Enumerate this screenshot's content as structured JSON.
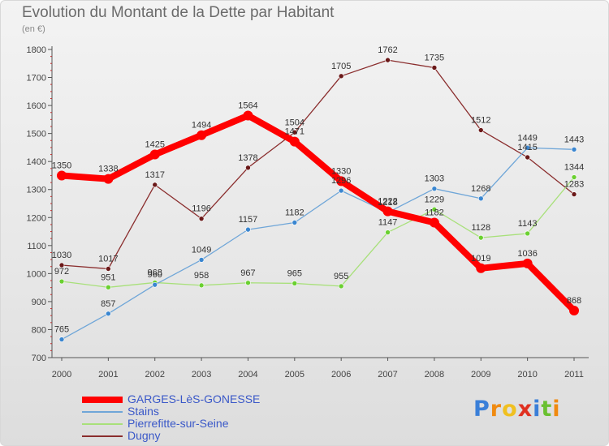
{
  "chart_data": {
    "type": "line",
    "title": "Evolution du Montant de la Dette par Habitant",
    "subtitle": "(en €)",
    "x": [
      "2000",
      "2001",
      "2002",
      "2003",
      "2004",
      "2005",
      "2006",
      "2007",
      "2008",
      "2009",
      "2010",
      "2011"
    ],
    "ylim": [
      700,
      1800
    ],
    "yticks": [
      700,
      800,
      900,
      1000,
      1100,
      1200,
      1300,
      1400,
      1500,
      1600,
      1700,
      1800
    ],
    "grid": false,
    "legend_placement": "bottom-left",
    "series": [
      {
        "name": "GARGES-LèS-GONESSE",
        "color": "#ff0000",
        "marker_color": "#ff0000",
        "values": [
          1350,
          1338,
          1425,
          1494,
          1564,
          1471,
          1330,
          1222,
          1182,
          1019,
          1036,
          868
        ],
        "labels": [
          "1350",
          "1338",
          "1425",
          "1494",
          "1564",
          "1471",
          "1330",
          "1222",
          "1182",
          "1019",
          "1036",
          "868"
        ]
      },
      {
        "name": "Stains",
        "color": "#6fa6d8",
        "marker_color": "#3a86d0",
        "values": [
          765,
          857,
          960,
          1049,
          1157,
          1182,
          1296,
          1218,
          1303,
          1268,
          1449,
          1443
        ],
        "labels": [
          "765",
          "857",
          "960",
          "1049",
          "1157",
          "1182",
          "1296",
          "1218",
          "1303",
          "1268",
          "1449",
          "1443"
        ]
      },
      {
        "name": "Pierrefitte-sur-Seine",
        "color": "#a8e07a",
        "marker_color": "#6ad030",
        "values": [
          972,
          951,
          968,
          958,
          967,
          965,
          955,
          1147,
          1229,
          1128,
          1143,
          1344
        ],
        "labels": [
          "972",
          "951",
          "968",
          "958",
          "967",
          "965",
          "955",
          "1147",
          "1229",
          "1128",
          "1143",
          "1344"
        ]
      },
      {
        "name": "Dugny",
        "color": "#8a2d2d",
        "marker_color": "#6a1818",
        "values": [
          1030,
          1017,
          1317,
          1196,
          1378,
          1504,
          1705,
          1762,
          1735,
          1512,
          1415,
          1283
        ],
        "labels": [
          "1030",
          "1017",
          "1317",
          "1196",
          "1378",
          "1504",
          "1705",
          "1762",
          "1735",
          "1512",
          "1415",
          "1283"
        ]
      }
    ]
  },
  "logo": {
    "letters": [
      "P",
      "r",
      "o",
      "x",
      "i",
      "t",
      "i"
    ],
    "colors": [
      "#3a7fd8",
      "#f08a10",
      "#f0c020",
      "#e03020",
      "#3a7fd8",
      "#6ac030",
      "#f08a10"
    ]
  }
}
